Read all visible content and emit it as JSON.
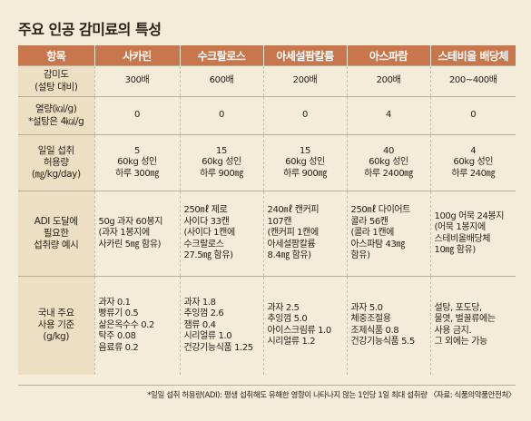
{
  "title": "주요 인공 감미료의 특성",
  "header": [
    "항목",
    "사카린",
    "수크랄로스",
    "아세설팜칼륨",
    "아스파람",
    "스테비올 배당체"
  ],
  "rows": [
    {
      "label": [
        "감미도",
        "(설탕 대비)"
      ],
      "cells": [
        [
          "300배"
        ],
        [
          "600배"
        ],
        [
          "200배"
        ],
        [
          "200배"
        ],
        [
          "200~400배"
        ]
      ]
    },
    {
      "label": [
        "열량(㎉/g)",
        "*설탕은 4㎉/g"
      ],
      "cells": [
        [
          "0"
        ],
        [
          "0"
        ],
        [
          "0"
        ],
        [
          "4"
        ],
        [
          "0"
        ]
      ]
    },
    {
      "label": [
        "일일 섭취",
        "허용량",
        "(㎎/kg/day)"
      ],
      "cells": [
        [
          "5",
          "60kg 성인",
          "하루 300㎎"
        ],
        [
          "15",
          "60kg 성인",
          "하루 900㎎"
        ],
        [
          "15",
          "60kg 성인",
          "하루 900㎎"
        ],
        [
          "40",
          "60kg 성인",
          "하루 2400㎎"
        ],
        [
          "4",
          "60kg 성인",
          "하루 240㎎"
        ]
      ]
    },
    {
      "label": [
        "ADI 도달에",
        "필요한",
        "섭취량 예시"
      ],
      "cells": [
        [
          "50g 과자 60봉지",
          "(과자 1봉지에",
          "사카린 5㎎ 함유)"
        ],
        [
          "250㎖ 제로",
          "사이다 33캔",
          "(사이다 1캔에",
          "수크랄로스",
          "27.5㎎ 함유)"
        ],
        [
          "240㎖ 캔커피",
          "107캔",
          "(캔커피 1캔에",
          "아세설팜칼륨",
          "8.4㎎ 함유)"
        ],
        [
          "250㎖ 다이어트",
          "콜라 56캔",
          "(콜라 1캔에",
          "아스파탐 43㎎",
          "함유)"
        ],
        [
          "100g 어묵 24봉지",
          "(어묵 1봉지에",
          "스테비올배당체",
          "10㎎ 함유)"
        ]
      ]
    },
    {
      "label": [
        "국내 주요",
        "사용 기준",
        "(g/kg)"
      ],
      "cells": [
        [
          "과자 0.1",
          "빵류기 0.5",
          "삶은옥수수 0.2",
          "탁주 0.08",
          "음료류 0.2"
        ],
        [
          "과자 1.8",
          "추잉껌 2.6",
          "잼류 0.4",
          "시리얼류 1.0",
          "건강기능식품 1.25"
        ],
        [
          "과자 2.5",
          "추잉껌 5.0",
          "아이스크림류 1.0",
          "시리얼류 1.2"
        ],
        [
          "과자 5.0",
          "체중조절용",
          "조제식품 0.8",
          "건강기능식품 5.5"
        ],
        [
          "설탕, 포도당,",
          "물엿, 벌꿀류에는",
          "사용 금지.",
          "그 외에는 가능"
        ]
      ]
    }
  ],
  "footnote": "*일일 섭취 허용량(ADI): 평생 섭취해도 유해한 영향이 나타나지 않는 1인당 1일 최대 섭취량 〈자료: 식품의약품안전처〉"
}
